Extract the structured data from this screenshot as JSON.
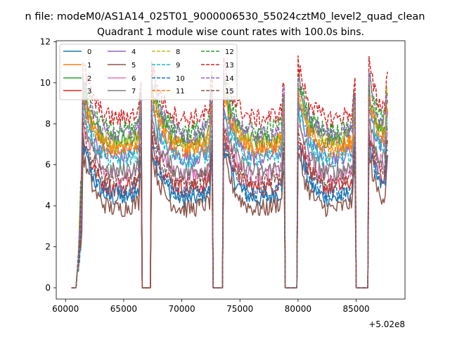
{
  "chart_data": {
    "type": "line",
    "suptitle": "n file: modeM0/AS1A14_025T01_9000006530_55024cztM0_level2_quad_clean",
    "title": "Quadrant 1 module wise count rates with 100.0s bins.",
    "xlabel": "",
    "ylabel": "",
    "x_offset_label": "+5.02e8",
    "xlim": [
      59200,
      89200
    ],
    "ylim": [
      -0.55,
      12.05
    ],
    "xticks": [
      60000,
      65000,
      70000,
      75000,
      80000,
      85000
    ],
    "xtick_labels": [
      "60000",
      "65000",
      "70000",
      "75000",
      "80000",
      "85000"
    ],
    "yticks": [
      0,
      2,
      4,
      6,
      8,
      10,
      12
    ],
    "ytick_labels": [
      "0",
      "2",
      "4",
      "6",
      "8",
      "10",
      "12"
    ],
    "legend_position": "upper-left",
    "bin_size_s": 100,
    "segments": [
      {
        "x_start": 61000,
        "x_end": 66500,
        "rise_from": 60600,
        "rise_peak": 61500
      },
      {
        "x_start": 67300,
        "x_end": 72600,
        "rise_from": 66500,
        "rise_peak": 67400
      },
      {
        "x_start": 73500,
        "x_end": 78800,
        "rise_from": 72600,
        "rise_peak": 73600
      },
      {
        "x_start": 79900,
        "x_end": 84900,
        "rise_from": 78800,
        "rise_peak": 80000
      },
      {
        "x_start": 86000,
        "x_end": 87700,
        "rise_from": 84900,
        "rise_peak": 86100
      }
    ],
    "gaps": [
      [
        60400,
        61000
      ],
      [
        66700,
        67300
      ],
      [
        72800,
        73400
      ],
      [
        78800,
        79900
      ],
      [
        84900,
        86000
      ]
    ],
    "series": [
      {
        "name": "0",
        "color": "#1f77b4",
        "dash": "solid",
        "level": 4.5
      },
      {
        "name": "1",
        "color": "#ff7f0e",
        "dash": "solid",
        "level": 7.0
      },
      {
        "name": "2",
        "color": "#2ca02c",
        "dash": "solid",
        "level": 7.3
      },
      {
        "name": "3",
        "color": "#d62728",
        "dash": "solid",
        "level": 5.0
      },
      {
        "name": "4",
        "color": "#9467bd",
        "dash": "solid",
        "level": 6.5
      },
      {
        "name": "5",
        "color": "#8c564b",
        "dash": "solid",
        "level": 4.0
      },
      {
        "name": "6",
        "color": "#e377c2",
        "dash": "solid",
        "level": 5.6
      },
      {
        "name": "7",
        "color": "#7f7f7f",
        "dash": "solid",
        "level": 5.8
      },
      {
        "name": "8",
        "color": "#bcbd22",
        "dash": "dashed",
        "level": 7.2
      },
      {
        "name": "9",
        "color": "#17becf",
        "dash": "dashed",
        "level": 6.4
      },
      {
        "name": "10",
        "color": "#1f77b4",
        "dash": "dashed",
        "level": 4.7
      },
      {
        "name": "11",
        "color": "#ff7f0e",
        "dash": "dashed",
        "level": 6.9
      },
      {
        "name": "12",
        "color": "#2ca02c",
        "dash": "dashed",
        "level": 7.8
      },
      {
        "name": "13",
        "color": "#d62728",
        "dash": "dashed",
        "level": 8.4
      },
      {
        "name": "14",
        "color": "#9467bd",
        "dash": "dashed",
        "level": 7.6
      },
      {
        "name": "15",
        "color": "#8c564b",
        "dash": "dashed",
        "level": 5.3
      }
    ]
  }
}
